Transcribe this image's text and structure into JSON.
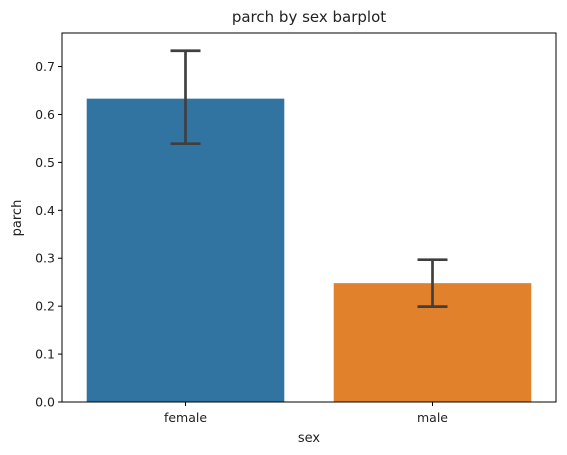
{
  "chart_data": {
    "type": "bar",
    "title": "parch by sex barplot",
    "xlabel": "sex",
    "ylabel": "parch",
    "categories": [
      "female",
      "male"
    ],
    "values": [
      0.633,
      0.248
    ],
    "error_bars": [
      {
        "low": 0.539,
        "high": 0.733
      },
      {
        "low": 0.199,
        "high": 0.297
      }
    ],
    "colors": [
      "#3274a1",
      "#e1812c"
    ],
    "error_bar_color": "#3f3f3f",
    "ylim": [
      0,
      0.77
    ],
    "yticks": [
      "0.0",
      "0.1",
      "0.2",
      "0.3",
      "0.4",
      "0.5",
      "0.6",
      "0.7"
    ],
    "grid": false,
    "legend": "none"
  }
}
